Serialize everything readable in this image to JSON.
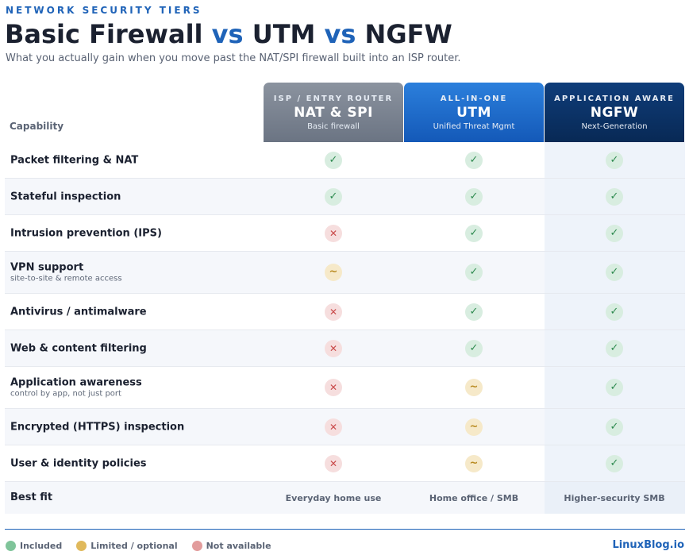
{
  "header": {
    "eyebrow": "NETWORK SECURITY TIERS",
    "title_part1": "Basic Firewall",
    "title_vs1": "vs",
    "title_part2": "UTM",
    "title_vs2": "vs",
    "title_part3": "NGFW",
    "subtitle": "What you actually gain when you move past the NAT/SPI firewall built into an ISP router."
  },
  "table": {
    "capability_header": "Capability",
    "tiers": [
      {
        "tag": "ISP / ENTRY ROUTER",
        "name": "NAT & SPI",
        "desc": "Basic firewall",
        "color": "#7a828f"
      },
      {
        "tag": "ALL-IN-ONE",
        "name": "UTM",
        "desc": "Unified Threat Mgmt",
        "color": "#1d6ccb"
      },
      {
        "tag": "APPLICATION AWARE",
        "name": "NGFW",
        "desc": "Next-Generation",
        "color": "#0b3366"
      }
    ],
    "rows": [
      {
        "label": "Packet filtering & NAT",
        "sub": "",
        "values": [
          "yes",
          "yes",
          "yes"
        ]
      },
      {
        "label": "Stateful inspection",
        "sub": "",
        "values": [
          "yes",
          "yes",
          "yes"
        ]
      },
      {
        "label": "Intrusion prevention (IPS)",
        "sub": "",
        "values": [
          "no",
          "yes",
          "yes"
        ]
      },
      {
        "label": "VPN support",
        "sub": "site-to-site & remote access",
        "values": [
          "part",
          "yes",
          "yes"
        ]
      },
      {
        "label": "Antivirus / antimalware",
        "sub": "",
        "values": [
          "no",
          "yes",
          "yes"
        ]
      },
      {
        "label": "Web & content filtering",
        "sub": "",
        "values": [
          "no",
          "yes",
          "yes"
        ]
      },
      {
        "label": "Application awareness",
        "sub": "control by app, not just port",
        "values": [
          "no",
          "part",
          "yes"
        ]
      },
      {
        "label": "Encrypted (HTTPS) inspection",
        "sub": "",
        "values": [
          "no",
          "part",
          "yes"
        ]
      },
      {
        "label": "User & identity policies",
        "sub": "",
        "values": [
          "no",
          "part",
          "yes"
        ]
      }
    ],
    "best_fit": {
      "label": "Best fit",
      "values": [
        "Everyday home use",
        "Home office / SMB",
        "Higher-security SMB"
      ]
    }
  },
  "symbols": {
    "yes": "✓",
    "no": "✕",
    "part": "~"
  },
  "legend": {
    "items": [
      {
        "label": "Included",
        "color": "#7fc49a",
        "icon": "included-dot"
      },
      {
        "label": "Limited / optional",
        "color": "#e0b95c",
        "icon": "limited-dot"
      },
      {
        "label": "Not available",
        "color": "#e29c9c",
        "icon": "not-available-dot"
      }
    ]
  },
  "brand": "LinuxBlog.io"
}
